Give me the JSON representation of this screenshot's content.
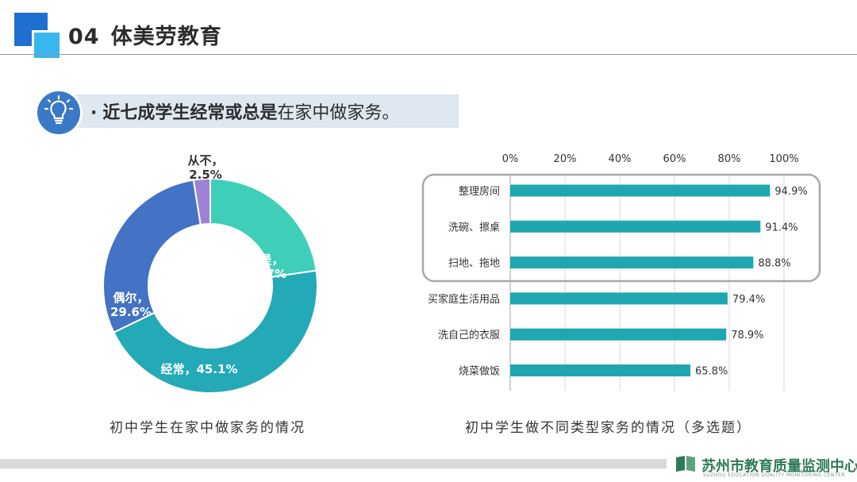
{
  "header": {
    "number": "04",
    "title": "体美劳教育"
  },
  "callout": {
    "icon": "lightbulb-icon",
    "bullet": "·",
    "bold_text": "近七成学生经常或总是",
    "normal_text": "在家中做家务。"
  },
  "chart_data": [
    {
      "type": "pie",
      "subtype": "donut",
      "caption": "初中学生在家中做家务的情况",
      "slices": [
        {
          "label": "总是，",
          "value": 22.7,
          "value_text": "22.7%",
          "color": "#3fcfb8"
        },
        {
          "label": "经常，",
          "value": 45.1,
          "value_text": "45.1%",
          "color": "#24a9b6"
        },
        {
          "label": "偶尔，",
          "value": 29.6,
          "value_text": "29.6%",
          "color": "#4472c4"
        },
        {
          "label": "从不，",
          "value": 2.5,
          "value_text": "2.5%",
          "color": "#9f82d6"
        }
      ]
    },
    {
      "type": "bar",
      "orientation": "horizontal",
      "caption": "初中学生做不同类型家务的情况（多选题）",
      "xlim": [
        0,
        100
      ],
      "x_ticks": [
        "0%",
        "20%",
        "40%",
        "60%",
        "80%",
        "100%"
      ],
      "grid": true,
      "bar_color": "#20a6b0",
      "highlighted_group": "top-3",
      "categories": [
        "整理房间",
        "洗碗、擦桌",
        "扫地、拖地",
        "买家庭生活用品",
        "洗自己的衣服",
        "烧菜做饭"
      ],
      "values": [
        94.9,
        91.4,
        88.8,
        79.4,
        78.9,
        65.8
      ],
      "value_labels": [
        "94.9%",
        "91.4%",
        "88.8%",
        "79.4%",
        "78.9%",
        "65.8%"
      ]
    }
  ],
  "footer": {
    "org_name": "苏州市教育质量监测中心",
    "org_sub": "SUZHOU EDUCATION QUALITY MONITORING CENTER",
    "logo_icon": "book-logo-icon"
  }
}
